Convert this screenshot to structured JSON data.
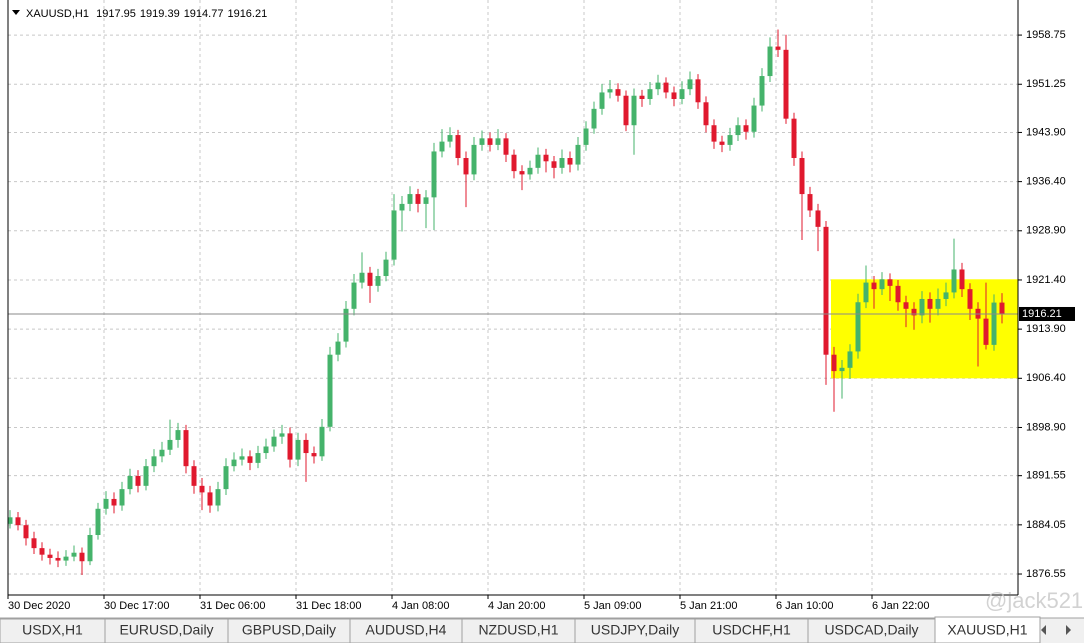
{
  "chart_data": {
    "type": "candlestick",
    "title": "XAUUSD,H1",
    "up_color": "#45b36b",
    "down_color": "#e0192e",
    "grid": true,
    "ylim": [
      1873.35,
      1964.1
    ],
    "yticks": [
      1876.55,
      1884.05,
      1891.55,
      {
        "value": 1898.9,
        "label": "1898.90"
      },
      {
        "value": 1906.4,
        "label": "1906.40"
      },
      {
        "value": 1913.9,
        "label": "1913.90"
      },
      {
        "value": 1921.4,
        "label": "1921.40"
      },
      {
        "value": 1928.9,
        "label": "1928.90"
      },
      {
        "value": 1936.4,
        "label": "1936.40"
      },
      {
        "value": 1943.9,
        "label": "1943.90"
      },
      1951.25,
      1958.75
    ],
    "categories": [
      "30 Dec 2020",
      null,
      null,
      null,
      null,
      null,
      null,
      null,
      null,
      null,
      null,
      null,
      "30 Dec 17:00",
      null,
      null,
      null,
      null,
      null,
      null,
      null,
      null,
      null,
      null,
      null,
      "31 Dec 06:00",
      null,
      null,
      null,
      null,
      null,
      null,
      null,
      null,
      null,
      null,
      null,
      "31 Dec 18:00",
      null,
      null,
      null,
      null,
      null,
      null,
      null,
      null,
      null,
      null,
      null,
      "4 Jan 08:00",
      null,
      null,
      null,
      null,
      null,
      null,
      null,
      null,
      null,
      null,
      null,
      "4 Jan 20:00",
      null,
      null,
      null,
      null,
      null,
      null,
      null,
      null,
      null,
      null,
      null,
      "5 Jan 09:00",
      null,
      null,
      null,
      null,
      null,
      null,
      null,
      null,
      null,
      null,
      null,
      "5 Jan 21:00",
      null,
      null,
      null,
      null,
      null,
      null,
      null,
      null,
      null,
      null,
      null,
      "6 Jan 10:00",
      null,
      null,
      null,
      null,
      null,
      null,
      null,
      null,
      null,
      null,
      null,
      "6 Jan 22:00",
      null,
      null,
      null,
      null,
      null,
      null,
      null,
      null,
      null,
      null,
      null,
      null,
      null,
      null,
      null,
      null
    ],
    "ohlc": [
      [
        1884.2,
        1886.3,
        1883.5,
        1885.2
      ],
      [
        1885.2,
        1886.0,
        1883.2,
        1884.0
      ],
      [
        1884.0,
        1884.8,
        1880.9,
        1882.0
      ],
      [
        1882.0,
        1883.0,
        1879.6,
        1880.5
      ],
      [
        1880.5,
        1881.4,
        1878.6,
        1879.5
      ],
      [
        1879.5,
        1880.4,
        1878.0,
        1879.0
      ],
      [
        1879.0,
        1880.0,
        1877.6,
        1878.6
      ],
      [
        1878.6,
        1880.2,
        1877.8,
        1879.2
      ],
      [
        1879.2,
        1880.9,
        1878.5,
        1879.8
      ],
      [
        1879.8,
        1880.6,
        1876.4,
        1878.5
      ],
      [
        1878.5,
        1883.6,
        1877.9,
        1882.5
      ],
      [
        1882.5,
        1887.4,
        1881.8,
        1886.5
      ],
      [
        1886.5,
        1889.2,
        1885.6,
        1888.0
      ],
      [
        1888.0,
        1889.0,
        1885.8,
        1887.0
      ],
      [
        1887.0,
        1890.6,
        1886.2,
        1889.5
      ],
      [
        1889.5,
        1892.6,
        1888.7,
        1891.5
      ],
      [
        1891.5,
        1892.4,
        1889.0,
        1890.0
      ],
      [
        1890.0,
        1894.1,
        1889.3,
        1893.0
      ],
      [
        1893.0,
        1895.6,
        1892.1,
        1894.5
      ],
      [
        1894.5,
        1896.7,
        1893.6,
        1895.5
      ],
      [
        1895.5,
        1900.1,
        1894.7,
        1897.0
      ],
      [
        1897.0,
        1899.6,
        1895.8,
        1898.5
      ],
      [
        1898.5,
        1899.3,
        1891.9,
        1893.0
      ],
      [
        1893.0,
        1893.9,
        1888.8,
        1890.0
      ],
      [
        1890.0,
        1891.2,
        1886.3,
        1889.0
      ],
      [
        1889.0,
        1890.0,
        1885.9,
        1887.0
      ],
      [
        1887.0,
        1890.6,
        1886.1,
        1889.5
      ],
      [
        1889.5,
        1894.2,
        1888.6,
        1893.0
      ],
      [
        1893.0,
        1895.1,
        1892.2,
        1894.0
      ],
      [
        1894.0,
        1895.7,
        1893.1,
        1894.5
      ],
      [
        1894.5,
        1895.4,
        1892.4,
        1893.5
      ],
      [
        1893.5,
        1896.1,
        1892.7,
        1895.0
      ],
      [
        1895.0,
        1897.2,
        1894.1,
        1896.0
      ],
      [
        1896.0,
        1898.6,
        1895.2,
        1897.5
      ],
      [
        1897.5,
        1899.3,
        1896.4,
        1898.0
      ],
      [
        1898.0,
        1898.9,
        1892.8,
        1894.0
      ],
      [
        1894.0,
        1898.1,
        1893.0,
        1897.0
      ],
      [
        1897.0,
        1898.0,
        1890.6,
        1895.0
      ],
      [
        1895.0,
        1896.0,
        1893.4,
        1894.5
      ],
      [
        1894.5,
        1900.2,
        1893.8,
        1899.0
      ],
      [
        1899.0,
        1911.2,
        1898.3,
        1910.0
      ],
      [
        1910.0,
        1913.3,
        1909.0,
        1912.0
      ],
      [
        1912.0,
        1918.2,
        1911.1,
        1917.0
      ],
      [
        1917.0,
        1922.3,
        1916.0,
        1921.0
      ],
      [
        1921.0,
        1925.6,
        1920.1,
        1922.5
      ],
      [
        1922.5,
        1923.4,
        1917.9,
        1920.5
      ],
      [
        1920.5,
        1923.1,
        1919.6,
        1922.0
      ],
      [
        1922.0,
        1925.7,
        1921.2,
        1924.5
      ],
      [
        1924.5,
        1934.5,
        1923.6,
        1932.0
      ],
      [
        1932.0,
        1934.2,
        1928.8,
        1933.0
      ],
      [
        1933.0,
        1935.7,
        1931.9,
        1934.5
      ],
      [
        1934.5,
        1935.3,
        1931.7,
        1933.0
      ],
      [
        1933.0,
        1935.1,
        1929.3,
        1934.0
      ],
      [
        1934.0,
        1942.3,
        1929.0,
        1941.0
      ],
      [
        1941.0,
        1944.4,
        1940.1,
        1942.5
      ],
      [
        1942.5,
        1944.7,
        1941.6,
        1943.5
      ],
      [
        1943.5,
        1944.3,
        1938.9,
        1940.0
      ],
      [
        1940.0,
        1941.0,
        1932.5,
        1937.5
      ],
      [
        1937.5,
        1943.2,
        1936.6,
        1942.0
      ],
      [
        1942.0,
        1944.2,
        1941.1,
        1943.0
      ],
      [
        1943.0,
        1943.9,
        1941.0,
        1942.0
      ],
      [
        1942.0,
        1944.4,
        1941.2,
        1943.0
      ],
      [
        1943.0,
        1943.8,
        1939.4,
        1940.5
      ],
      [
        1940.5,
        1941.3,
        1936.9,
        1938.0
      ],
      [
        1938.0,
        1938.9,
        1935.1,
        1937.5
      ],
      [
        1937.5,
        1939.6,
        1936.7,
        1938.5
      ],
      [
        1938.5,
        1941.6,
        1937.6,
        1940.5
      ],
      [
        1940.5,
        1941.4,
        1937.8,
        1939.5
      ],
      [
        1939.5,
        1940.3,
        1936.9,
        1938.5
      ],
      [
        1938.5,
        1941.3,
        1937.6,
        1940.0
      ],
      [
        1940.0,
        1941.0,
        1937.8,
        1939.0
      ],
      [
        1939.0,
        1943.2,
        1938.1,
        1942.0
      ],
      [
        1942.0,
        1945.6,
        1941.1,
        1944.5
      ],
      [
        1944.5,
        1948.6,
        1943.7,
        1947.5
      ],
      [
        1947.5,
        1951.3,
        1946.6,
        1950.0
      ],
      [
        1950.0,
        1951.9,
        1949.1,
        1950.5
      ],
      [
        1950.5,
        1951.4,
        1948.6,
        1949.5
      ],
      [
        1949.5,
        1950.3,
        1944.1,
        1945.0
      ],
      [
        1945.0,
        1950.6,
        1940.5,
        1949.5
      ],
      [
        1949.5,
        1950.4,
        1947.8,
        1949.0
      ],
      [
        1949.0,
        1951.6,
        1948.1,
        1950.5
      ],
      [
        1950.5,
        1952.7,
        1949.6,
        1951.5
      ],
      [
        1951.5,
        1952.3,
        1949.1,
        1950.0
      ],
      [
        1950.0,
        1950.9,
        1947.9,
        1949.0
      ],
      [
        1949.0,
        1951.7,
        1948.2,
        1950.5
      ],
      [
        1950.5,
        1953.2,
        1949.6,
        1952.0
      ],
      [
        1952.0,
        1952.8,
        1947.5,
        1948.5
      ],
      [
        1948.5,
        1949.4,
        1943.9,
        1945.0
      ],
      [
        1945.0,
        1945.9,
        1941.4,
        1942.5
      ],
      [
        1942.5,
        1943.4,
        1940.9,
        1942.0
      ],
      [
        1942.0,
        1944.6,
        1941.1,
        1943.5
      ],
      [
        1943.5,
        1946.2,
        1942.6,
        1945.0
      ],
      [
        1945.0,
        1945.9,
        1942.8,
        1944.0
      ],
      [
        1944.0,
        1949.2,
        1943.1,
        1948.0
      ],
      [
        1948.0,
        1953.7,
        1947.1,
        1952.5
      ],
      [
        1952.5,
        1958.4,
        1951.6,
        1957.0
      ],
      [
        1957.0,
        1959.6,
        1955.4,
        1956.5
      ],
      [
        1956.5,
        1958.8,
        1945.2,
        1946.0
      ],
      [
        1946.0,
        1946.9,
        1938.8,
        1940.0
      ],
      [
        1940.0,
        1941.0,
        1927.5,
        1934.5
      ],
      [
        1934.5,
        1935.6,
        1931.0,
        1932.0
      ],
      [
        1932.0,
        1933.0,
        1925.8,
        1929.5
      ],
      [
        1929.5,
        1930.4,
        1905.4,
        1910.0
      ],
      [
        1910.0,
        1911.2,
        1901.3,
        1907.5
      ],
      [
        1907.5,
        1909.2,
        1903.3,
        1908.0
      ],
      [
        1908.0,
        1911.6,
        1906.3,
        1910.5
      ],
      [
        1910.5,
        1919.3,
        1909.4,
        1918.0
      ],
      [
        1918.0,
        1923.6,
        1917.1,
        1921.0
      ],
      [
        1921.0,
        1922.0,
        1917.0,
        1920.0
      ],
      [
        1920.0,
        1922.6,
        1919.1,
        1921.5
      ],
      [
        1921.5,
        1922.4,
        1918.2,
        1920.5
      ],
      [
        1920.5,
        1921.4,
        1916.7,
        1918.0
      ],
      [
        1918.0,
        1919.0,
        1914.2,
        1917.0
      ],
      [
        1917.0,
        1918.0,
        1913.8,
        1916.0
      ],
      [
        1916.0,
        1919.7,
        1914.8,
        1918.5
      ],
      [
        1918.5,
        1919.5,
        1914.9,
        1917.0
      ],
      [
        1917.0,
        1920.1,
        1916.0,
        1918.5
      ],
      [
        1918.5,
        1921.0,
        1917.4,
        1919.5
      ],
      [
        1919.5,
        1927.7,
        1918.6,
        1923.0
      ],
      [
        1923.0,
        1924.0,
        1918.8,
        1920.0
      ],
      [
        1920.0,
        1920.9,
        1915.3,
        1917.0
      ],
      [
        1917.0,
        1918.0,
        1908.2,
        1915.5
      ],
      [
        1915.5,
        1921.0,
        1910.8,
        1911.5
      ],
      [
        1911.5,
        1919.2,
        1910.6,
        1917.95
      ],
      [
        1917.95,
        1919.39,
        1914.77,
        1916.21
      ]
    ],
    "rectangle": {
      "start": 103,
      "high": 1921.5,
      "low": 1906.4,
      "color": "#ffff00"
    },
    "watermark": "@jack521"
  },
  "tabs": [
    "USDX,H1",
    "EURUSD,Daily",
    "GBPUSD,Daily",
    "AUDUSD,H4",
    "NZDUSD,H1",
    "USDJPY,Daily",
    "USDCHF,H1",
    "USDCAD,Daily",
    "XAUUSD,H1"
  ],
  "active_tab": 8
}
